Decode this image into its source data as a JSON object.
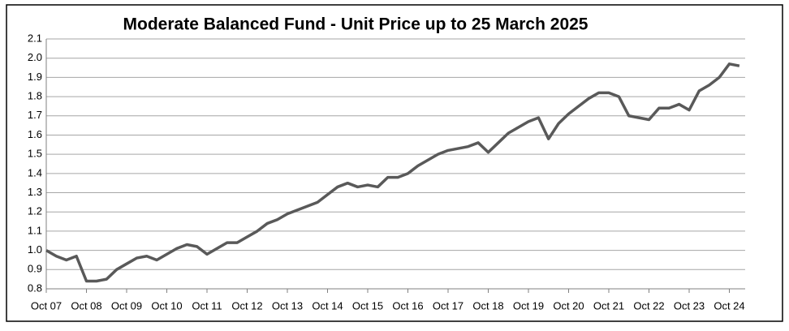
{
  "chart_data": {
    "type": "line",
    "title": "Moderate Balanced Fund - Unit Price up to 25 March 2025",
    "categories": [
      "Oct 07",
      null,
      null,
      null,
      "Oct 08",
      null,
      null,
      null,
      "Oct 09",
      null,
      null,
      null,
      "Oct 10",
      null,
      null,
      null,
      "Oct 11",
      null,
      null,
      null,
      "Oct 12",
      null,
      null,
      null,
      "Oct 13",
      null,
      null,
      null,
      "Oct 14",
      null,
      null,
      null,
      "Oct 15",
      null,
      null,
      null,
      "Oct 16",
      null,
      null,
      null,
      "Oct 17",
      null,
      null,
      null,
      "Oct 18",
      null,
      null,
      null,
      "Oct 19",
      null,
      null,
      null,
      "Oct 20",
      null,
      null,
      null,
      "Oct 21",
      null,
      null,
      null,
      "Oct 22",
      null,
      null,
      null,
      "Oct 23",
      null,
      null,
      null,
      "Oct 24",
      null
    ],
    "series": [
      {
        "name": "Unit Price",
        "color": "#595959",
        "values": [
          1.0,
          0.97,
          0.95,
          0.97,
          0.84,
          0.84,
          0.85,
          0.9,
          0.93,
          0.96,
          0.97,
          0.95,
          0.98,
          1.01,
          1.03,
          1.02,
          0.98,
          1.01,
          1.04,
          1.04,
          1.07,
          1.1,
          1.14,
          1.16,
          1.19,
          1.21,
          1.23,
          1.25,
          1.29,
          1.33,
          1.35,
          1.33,
          1.34,
          1.33,
          1.38,
          1.38,
          1.4,
          1.44,
          1.47,
          1.5,
          1.52,
          1.53,
          1.54,
          1.56,
          1.51,
          1.56,
          1.61,
          1.64,
          1.67,
          1.69,
          1.58,
          1.66,
          1.71,
          1.75,
          1.79,
          1.82,
          1.82,
          1.8,
          1.7,
          1.69,
          1.68,
          1.74,
          1.74,
          1.76,
          1.73,
          1.83,
          1.86,
          1.9,
          1.97,
          1.96
        ]
      }
    ],
    "ylim": [
      0.8,
      2.1
    ],
    "yticks": [
      0.8,
      0.9,
      {
        "value": 1.0,
        "label": "1.0"
      },
      1.1,
      1.2,
      1.3,
      1.4,
      1.5,
      1.6,
      1.7,
      1.8,
      1.9,
      {
        "value": 2.0,
        "label": "2.0"
      },
      2.1
    ],
    "grid": true
  }
}
